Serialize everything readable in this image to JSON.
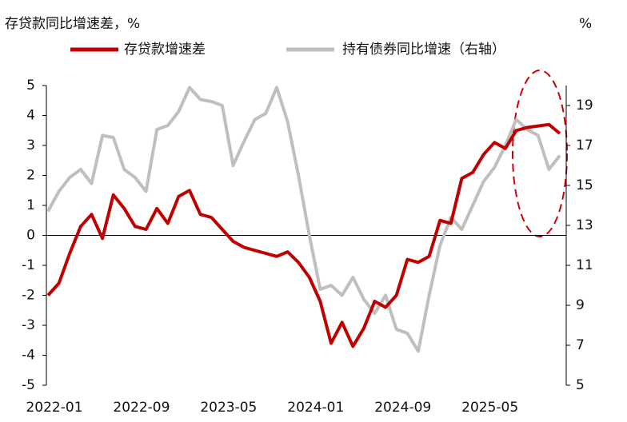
{
  "chart_data": {
    "type": "line",
    "title": "存贷款同比增速差，%",
    "y2_label": "%",
    "categories": [
      "2022-01",
      null,
      null,
      null,
      null,
      null,
      null,
      null,
      "2022-09",
      null,
      null,
      null,
      null,
      null,
      null,
      null,
      "2023-05",
      null,
      null,
      null,
      null,
      null,
      null,
      null,
      "2024-01",
      null,
      null,
      null,
      null,
      null,
      null,
      null,
      "2024-09",
      null,
      null,
      null,
      null,
      null,
      null,
      null,
      "2025-05",
      null,
      null,
      null,
      null,
      null,
      null,
      null
    ],
    "series": [
      {
        "name": "存贷款增速差",
        "color": "#c00000",
        "values": [
          -2.0,
          -1.6,
          -0.6,
          0.3,
          0.7,
          -0.1,
          1.35,
          0.9,
          0.3,
          0.2,
          0.9,
          0.4,
          1.3,
          1.5,
          0.7,
          0.6,
          0.2,
          -0.2,
          -0.4,
          -0.5,
          -0.6,
          -0.7,
          -0.55,
          -0.9,
          -1.4,
          -2.2,
          -3.6,
          -2.9,
          -3.7,
          -3.1,
          -2.2,
          -2.4,
          -2.0,
          -0.8,
          -0.9,
          -0.7,
          0.5,
          0.4,
          1.9,
          2.1,
          2.7,
          3.1,
          2.9,
          3.5,
          3.6,
          3.65,
          3.7,
          3.4
        ]
      },
      {
        "name": "持有债券同比增速（右轴）",
        "color": "#bfbfbf",
        "axis": "y2",
        "values": [
          13.7,
          14.7,
          15.4,
          15.8,
          15.1,
          17.5,
          17.4,
          15.8,
          15.4,
          14.7,
          17.8,
          18.0,
          18.7,
          19.9,
          19.3,
          19.2,
          19.0,
          16.0,
          17.2,
          18.3,
          18.6,
          19.9,
          18.2,
          15.5,
          12.5,
          9.8,
          10.0,
          9.5,
          10.4,
          9.3,
          8.6,
          9.5,
          7.8,
          7.6,
          6.7,
          9.5,
          12.0,
          13.4,
          12.8,
          14.0,
          15.2,
          15.9,
          17.0,
          18.3,
          17.8,
          17.5,
          15.8,
          16.5
        ]
      }
    ],
    "ylim": [
      -5,
      5
    ],
    "yticks": [
      -5,
      -4,
      -3,
      -2,
      -1,
      0,
      1,
      2,
      3,
      4,
      5
    ],
    "y2lim": [
      5,
      20
    ],
    "y2ticks": [
      5,
      7,
      9,
      11,
      13,
      15,
      17,
      19
    ]
  }
}
